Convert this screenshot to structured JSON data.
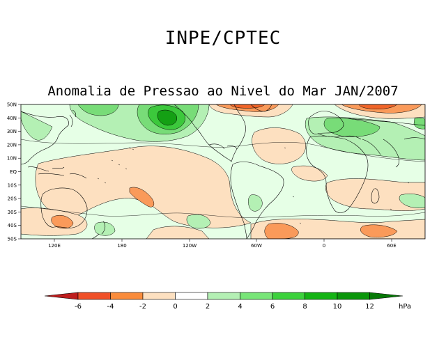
{
  "header": {
    "title": "INPE/CPTEC"
  },
  "map": {
    "title": "Anomalia de Pressao ao Nivel do Mar JAN/2007",
    "lat_labels": [
      "50N",
      "40N",
      "30N",
      "20N",
      "10N",
      "EQ",
      "10S",
      "20S",
      "30S",
      "40S",
      "50S"
    ],
    "lon_labels": [
      "120E",
      "180",
      "120W",
      "60W",
      "0",
      "60E"
    ],
    "colors": {
      "ocean_base": "#ffffff",
      "neg_2_0": "#fde0c0",
      "neg_4_2": "#fa9a5a",
      "neg_6_4": "#f06428",
      "pos_0_2": "#e6ffe6",
      "pos_2_4": "#b4f0b4",
      "pos_4_6": "#78dc78",
      "pos_6_8": "#3cc83c",
      "pos_8_10": "#14a014",
      "land": "#000000"
    }
  },
  "colorbar": {
    "ticks": [
      "-6",
      "-4",
      "-2",
      "0",
      "2",
      "4",
      "6",
      "8",
      "10",
      "12"
    ],
    "unit": "hPa",
    "colors": [
      "#be1e1e",
      "#f05028",
      "#fa8c3c",
      "#fde0c0",
      "#ffffff",
      "#e6ffe6",
      "#b4f0b4",
      "#78e678",
      "#3cd23c",
      "#14b414",
      "#0a960a",
      "#067806"
    ]
  }
}
